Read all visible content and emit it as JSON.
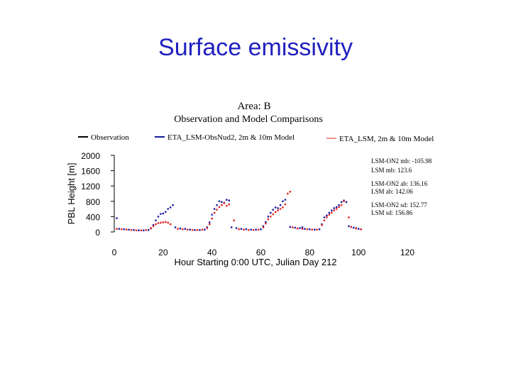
{
  "slide": {
    "title": "Surface emissivity"
  },
  "chart_data": {
    "type": "scatter",
    "title": "Area: B",
    "subtitle": "Observation and Model Comparisons",
    "xlabel": "Hour Starting 0:00 UTC, Julian Day 212",
    "ylabel": "PBL Height [m]",
    "xlim": [
      0,
      120
    ],
    "ylim": [
      0,
      2000
    ],
    "x_ticks": [
      "0",
      "20",
      "40",
      "60",
      "80",
      "100",
      "120"
    ],
    "y_ticks": [
      "0",
      "400",
      "800",
      "1200",
      "1600",
      "2000"
    ],
    "legend_position": "top",
    "series": [
      {
        "name": "Observation",
        "color": "#000000",
        "style": "line",
        "points": []
      },
      {
        "name": "ETA_LSM-ObsNud2, 2m & 10m Model",
        "color": "#1a1aa0",
        "style": "dots",
        "points": [
          [
            1,
            360
          ],
          [
            2,
            80
          ],
          [
            4,
            70
          ],
          [
            6,
            60
          ],
          [
            8,
            50
          ],
          [
            10,
            40
          ],
          [
            12,
            40
          ],
          [
            14,
            50
          ],
          [
            15,
            90
          ],
          [
            16,
            180
          ],
          [
            17,
            300
          ],
          [
            18,
            400
          ],
          [
            19,
            470
          ],
          [
            20,
            480
          ],
          [
            21,
            520
          ],
          [
            22,
            600
          ],
          [
            23,
            640
          ],
          [
            24,
            700
          ],
          [
            25,
            120
          ],
          [
            27,
            90
          ],
          [
            29,
            80
          ],
          [
            31,
            60
          ],
          [
            33,
            50
          ],
          [
            35,
            50
          ],
          [
            37,
            60
          ],
          [
            38,
            120
          ],
          [
            39,
            250
          ],
          [
            40,
            450
          ],
          [
            41,
            600
          ],
          [
            42,
            700
          ],
          [
            43,
            800
          ],
          [
            44,
            780
          ],
          [
            45,
            760
          ],
          [
            46,
            840
          ],
          [
            47,
            820
          ],
          [
            48,
            120
          ],
          [
            50,
            100
          ],
          [
            52,
            80
          ],
          [
            54,
            70
          ],
          [
            56,
            60
          ],
          [
            58,
            60
          ],
          [
            60,
            70
          ],
          [
            61,
            150
          ],
          [
            62,
            260
          ],
          [
            63,
            400
          ],
          [
            64,
            500
          ],
          [
            65,
            580
          ],
          [
            66,
            640
          ],
          [
            67,
            620
          ],
          [
            68,
            700
          ],
          [
            69,
            800
          ],
          [
            70,
            840
          ],
          [
            72,
            130
          ],
          [
            74,
            110
          ],
          [
            76,
            100
          ],
          [
            77,
            120
          ],
          [
            78,
            80
          ],
          [
            80,
            70
          ],
          [
            82,
            60
          ],
          [
            84,
            70
          ],
          [
            85,
            200
          ],
          [
            86,
            380
          ],
          [
            87,
            430
          ],
          [
            88,
            500
          ],
          [
            89,
            560
          ],
          [
            90,
            620
          ],
          [
            91,
            650
          ],
          [
            92,
            700
          ],
          [
            93,
            780
          ],
          [
            94,
            820
          ],
          [
            95,
            780
          ],
          [
            96,
            150
          ],
          [
            97,
            130
          ],
          [
            98,
            110
          ],
          [
            99,
            100
          ],
          [
            100,
            80
          ],
          [
            101,
            70
          ]
        ]
      },
      {
        "name": "ETA_LSM, 2m & 10m Model",
        "color": "#e02020",
        "style": "dots",
        "points": [
          [
            1,
            80
          ],
          [
            3,
            70
          ],
          [
            5,
            60
          ],
          [
            7,
            50
          ],
          [
            9,
            40
          ],
          [
            11,
            40
          ],
          [
            13,
            50
          ],
          [
            15,
            100
          ],
          [
            16,
            150
          ],
          [
            17,
            200
          ],
          [
            18,
            230
          ],
          [
            19,
            240
          ],
          [
            20,
            250
          ],
          [
            21,
            260
          ],
          [
            22,
            240
          ],
          [
            23,
            200
          ],
          [
            26,
            80
          ],
          [
            28,
            70
          ],
          [
            30,
            60
          ],
          [
            32,
            50
          ],
          [
            34,
            50
          ],
          [
            36,
            60
          ],
          [
            38,
            100
          ],
          [
            39,
            200
          ],
          [
            40,
            350
          ],
          [
            41,
            500
          ],
          [
            42,
            580
          ],
          [
            43,
            650
          ],
          [
            44,
            700
          ],
          [
            45,
            750
          ],
          [
            46,
            680
          ],
          [
            47,
            720
          ],
          [
            49,
            300
          ],
          [
            51,
            70
          ],
          [
            53,
            60
          ],
          [
            55,
            50
          ],
          [
            57,
            50
          ],
          [
            59,
            60
          ],
          [
            61,
            120
          ],
          [
            62,
            220
          ],
          [
            63,
            330
          ],
          [
            64,
            400
          ],
          [
            65,
            460
          ],
          [
            66,
            520
          ],
          [
            67,
            560
          ],
          [
            68,
            600
          ],
          [
            69,
            640
          ],
          [
            70,
            720
          ],
          [
            71,
            1000
          ],
          [
            72,
            1050
          ],
          [
            73,
            120
          ],
          [
            75,
            90
          ],
          [
            77,
            80
          ],
          [
            79,
            70
          ],
          [
            81,
            60
          ],
          [
            83,
            60
          ],
          [
            85,
            180
          ],
          [
            86,
            300
          ],
          [
            87,
            380
          ],
          [
            88,
            450
          ],
          [
            89,
            500
          ],
          [
            90,
            560
          ],
          [
            91,
            600
          ],
          [
            92,
            650
          ],
          [
            93,
            700
          ],
          [
            94,
            800
          ],
          [
            96,
            380
          ],
          [
            97,
            130
          ],
          [
            99,
            90
          ],
          [
            101,
            70
          ]
        ]
      }
    ],
    "annotations": [
      "LSM-ON2 mb: -105.98",
      "LSM mb: 123.6",
      "LSM-ON2 ab: 136.16",
      "LSM ab: 142.06",
      "LSM-ON2 sd: 152.77",
      "LSM sd: 156.86"
    ]
  }
}
